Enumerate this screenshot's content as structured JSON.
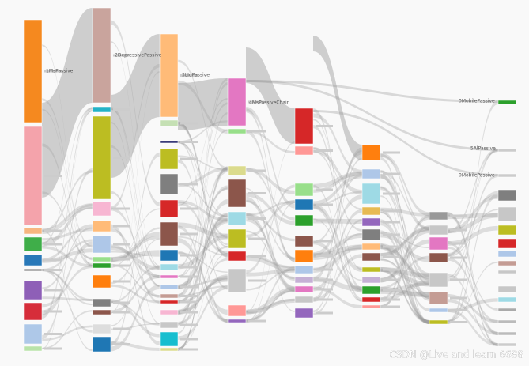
{
  "labels": [
    "1MsPassive",
    "2DepressivePassive",
    "3LIdPassive",
    "4MsPassiveChain",
    "0MobilePassive",
    "5AlPassive",
    "0MobilePassive"
  ],
  "watermark": "CSDN @Live and learn 6688"
}
